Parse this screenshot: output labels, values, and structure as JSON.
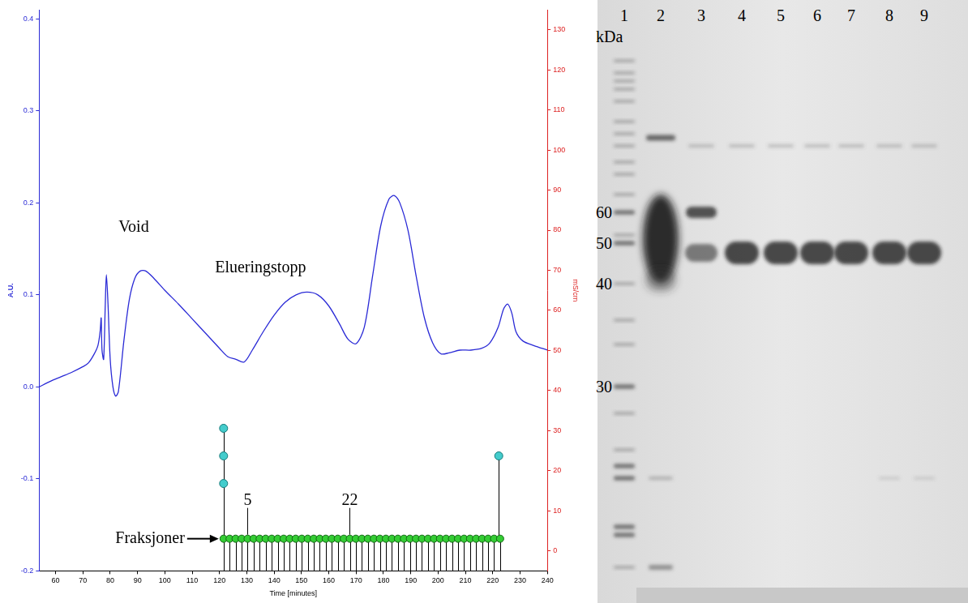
{
  "chart_data": {
    "type": "line",
    "x_label": "Time [minutes]",
    "y_label": "A.U.",
    "y2_label": "mS/cm",
    "color": "#2a2ad6",
    "x": [
      54,
      58,
      62,
      66,
      70,
      72,
      74,
      75.5,
      76.3,
      76.7,
      77,
      77.6,
      78.2,
      78.6,
      79.2,
      80,
      81,
      82,
      83,
      85,
      87,
      89,
      91,
      93,
      96,
      100,
      105,
      110,
      115,
      120,
      123,
      126,
      129,
      132,
      136,
      140,
      144,
      148,
      152,
      156,
      160,
      164,
      167,
      170,
      173,
      176,
      179,
      182,
      184,
      186,
      189,
      192,
      195,
      198,
      201,
      204,
      208,
      212,
      216,
      219,
      222,
      224,
      225.5,
      227,
      228.5,
      231,
      235,
      240
    ],
    "values": [
      0.0,
      0.006,
      0.011,
      0.016,
      0.022,
      0.026,
      0.035,
      0.045,
      0.06,
      0.075,
      0.04,
      0.03,
      0.09,
      0.122,
      0.09,
      0.03,
      0.0,
      -0.01,
      -0.005,
      0.05,
      0.095,
      0.118,
      0.126,
      0.126,
      0.118,
      0.105,
      0.09,
      0.074,
      0.058,
      0.042,
      0.033,
      0.03,
      0.027,
      0.04,
      0.06,
      0.078,
      0.092,
      0.1,
      0.103,
      0.1,
      0.088,
      0.068,
      0.052,
      0.047,
      0.065,
      0.12,
      0.175,
      0.204,
      0.208,
      0.2,
      0.17,
      0.12,
      0.075,
      0.048,
      0.036,
      0.037,
      0.04,
      0.04,
      0.042,
      0.048,
      0.065,
      0.085,
      0.09,
      0.08,
      0.06,
      0.05,
      0.045,
      0.04
    ],
    "xlim": [
      54,
      240
    ],
    "xticks": [
      60,
      70,
      80,
      90,
      100,
      110,
      120,
      130,
      140,
      150,
      160,
      170,
      180,
      190,
      200,
      210,
      220,
      230,
      240
    ],
    "ylim": [
      -0.2,
      0.41
    ],
    "yticks": [
      -0.2,
      -0.1,
      {
        "value": 0,
        "label": "0.0"
      },
      0.1,
      0.2,
      0.3,
      0.4
    ],
    "y2lim": [
      -5,
      135
    ],
    "y2ticks": [
      0,
      10,
      20,
      30,
      40,
      50,
      60,
      70,
      80,
      90,
      100,
      110,
      120,
      130
    ],
    "grid": false,
    "fractions": {
      "label": "Fraksjoner",
      "numbered": [
        "5",
        "22"
      ],
      "color": "#33cc33",
      "y": -0.165,
      "x": [
        121.5,
        123.7,
        125.9,
        128.1,
        130.3,
        132.5,
        134.7,
        136.9,
        139.1,
        141.3,
        143.5,
        145.7,
        147.9,
        150.1,
        152.3,
        154.5,
        156.7,
        158.9,
        161.1,
        163.3,
        165.5,
        167.7,
        169.9,
        172.1,
        174.3,
        176.5,
        178.7,
        180.9,
        183.1,
        185.3,
        187.5,
        189.7,
        191.9,
        194.1,
        196.3,
        198.5,
        200.7,
        202.9,
        205.1,
        207.3,
        209.5,
        211.7,
        213.9,
        216.1,
        218.3,
        220.5,
        222.7
      ]
    },
    "events": {
      "color": "#44cccc",
      "x": [
        121.5,
        121.5,
        121.5,
        222.2
      ],
      "y": [
        -0.045,
        -0.075,
        -0.105,
        -0.075
      ]
    },
    "annotations": [
      {
        "text": "Void",
        "x": 88.6,
        "y": 0.173
      },
      {
        "text": "Elueringstopp",
        "x": 135,
        "y": 0.129
      }
    ]
  },
  "gel": {
    "lane_labels": [
      "1",
      "2",
      "3",
      "4",
      "5",
      "6",
      "7",
      "8",
      "9"
    ],
    "unit": "kDa",
    "marker_labels": [
      60,
      50,
      40,
      30
    ]
  }
}
